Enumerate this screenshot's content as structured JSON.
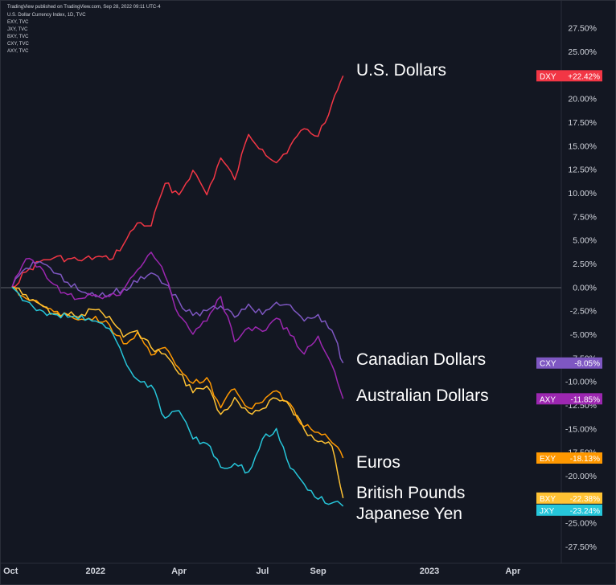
{
  "header": {
    "published": "TradingView published on TradingView.com, Sep 28, 2022 09:11 UTC-4",
    "symbols": [
      "U.S. Dollar Currency Index, 1D, TVC",
      "EXY, TVC",
      "JXY, TVC",
      "BXY, TVC",
      "CXY, TVC",
      "AXY, TVC"
    ]
  },
  "chart_data": {
    "type": "line",
    "ylim": [
      -29.3,
      28.5
    ],
    "y_ticks": [
      "27.50%",
      "25.00%",
      "22.50%",
      "20.00%",
      "17.50%",
      "15.00%",
      "12.50%",
      "10.00%",
      "7.50%",
      "5.00%",
      "2.50%",
      "0.00%",
      "-2.50%",
      "-5.00%",
      "-7.50%",
      "-10.00%",
      "-12.50%",
      "-15.00%",
      "-17.50%",
      "-20.00%",
      "-22.50%",
      "-25.00%",
      "-27.50%"
    ],
    "x_ticks": [
      "Oct",
      "2022",
      "Apr",
      "Jul",
      "Sep",
      "2023",
      "Apr"
    ],
    "x_unit": "months since Oct 2021",
    "annotations": [
      "U.S. Dollars",
      "Canadian Dollars",
      "Australian Dollars",
      "Euros",
      "British Pounds",
      "Japanese Yen"
    ],
    "series": [
      {
        "name": "DXY",
        "label": "DXY",
        "value_label": "+22.42%",
        "color": "#f23645",
        "x": [
          0,
          0.5,
          1,
          1.5,
          2,
          2.5,
          3,
          3.5,
          4,
          4.5,
          5,
          5.5,
          6,
          6.5,
          7,
          7.5,
          8,
          8.5,
          9,
          9.5,
          10,
          10.5,
          11,
          11.5,
          11.9
        ],
        "y": [
          0,
          1.6,
          2.7,
          3.1,
          3.0,
          2.8,
          3.2,
          2.9,
          4.5,
          6.8,
          6.5,
          11.0,
          9.8,
          12.4,
          9.8,
          13.7,
          11.4,
          16.2,
          14.6,
          13.2,
          15.0,
          16.8,
          16.0,
          19.5,
          22.42
        ]
      },
      {
        "name": "CXY",
        "label": "CXY",
        "value_label": "-8.05%",
        "color": "#7e57c2",
        "x": [
          0,
          0.5,
          1,
          1.5,
          2,
          2.5,
          3,
          3.5,
          4,
          4.5,
          5,
          5.5,
          6,
          6.5,
          7,
          7.5,
          8,
          8.5,
          9,
          9.5,
          10,
          10.5,
          11,
          11.5,
          11.9
        ],
        "y": [
          0,
          2.0,
          2.7,
          1.5,
          0.5,
          -0.5,
          -1.0,
          -0.8,
          -0.2,
          0.5,
          1.5,
          0.3,
          -1.5,
          -3.0,
          -2.5,
          -2.0,
          -3.2,
          -1.8,
          -2.9,
          -1.6,
          -1.9,
          -3.6,
          -2.9,
          -4.6,
          -8.05
        ]
      },
      {
        "name": "AXY",
        "label": "AXY",
        "value_label": "-11.85%",
        "color": "#9c27b0",
        "x": [
          0,
          0.5,
          1,
          1.5,
          2,
          2.5,
          3,
          3.5,
          4,
          4.5,
          5,
          5.5,
          6,
          6.5,
          7,
          7.5,
          8,
          8.5,
          9,
          9.5,
          10,
          10.5,
          11,
          11.5,
          11.9
        ],
        "y": [
          0,
          3.0,
          2.2,
          0.3,
          -0.8,
          -1.2,
          -0.8,
          -1.0,
          -0.3,
          1.8,
          3.7,
          1.2,
          -3.0,
          -5.0,
          -3.6,
          -1.0,
          -5.8,
          -4.3,
          -4.7,
          -3.3,
          -5.1,
          -7.1,
          -5.2,
          -8.3,
          -11.85
        ]
      },
      {
        "name": "EXY",
        "label": "EXY",
        "value_label": "-18.13%",
        "color": "#ff9800",
        "x": [
          0,
          0.5,
          1,
          1.5,
          2,
          2.5,
          3,
          3.5,
          4,
          4.5,
          5,
          5.5,
          6,
          6.5,
          7,
          7.5,
          8,
          8.5,
          9,
          9.5,
          10,
          10.5,
          11,
          11.5,
          11.9
        ],
        "y": [
          0,
          -1.2,
          -1.8,
          -2.6,
          -2.9,
          -3.4,
          -3.1,
          -4.0,
          -6.0,
          -4.8,
          -7.2,
          -6.4,
          -8.6,
          -10.2,
          -9.6,
          -12.8,
          -10.8,
          -12.8,
          -12.2,
          -11.0,
          -12.4,
          -14.8,
          -15.4,
          -16.5,
          -18.13
        ]
      },
      {
        "name": "BXY",
        "label": "BXY",
        "value_label": "-22.38%",
        "color": "#ffc233",
        "x": [
          0,
          0.5,
          1,
          1.5,
          2,
          2.5,
          3,
          3.5,
          4,
          4.5,
          5,
          5.5,
          6,
          6.5,
          7,
          7.5,
          8,
          8.5,
          9,
          9.5,
          10,
          10.5,
          11,
          11.5,
          11.9
        ],
        "y": [
          0,
          -0.8,
          -1.8,
          -2.8,
          -3.0,
          -2.9,
          -2.4,
          -3.1,
          -5.3,
          -4.6,
          -6.4,
          -7.1,
          -9.2,
          -11.2,
          -10.5,
          -13.5,
          -11.7,
          -13.3,
          -12.9,
          -11.8,
          -12.7,
          -15.1,
          -16.4,
          -16.9,
          -22.38
        ]
      },
      {
        "name": "JXY",
        "label": "JXY",
        "value_label": "-23.24%",
        "color": "#26c6da",
        "x": [
          0,
          0.5,
          1,
          1.5,
          2,
          2.5,
          3,
          3.5,
          4,
          4.5,
          5,
          5.5,
          6,
          6.5,
          7,
          7.5,
          8,
          8.5,
          9,
          9.5,
          10,
          10.5,
          11,
          11.5,
          11.9
        ],
        "y": [
          0,
          -1.5,
          -2.4,
          -2.9,
          -3.2,
          -3.0,
          -3.6,
          -4.4,
          -7.4,
          -9.8,
          -10.4,
          -13.9,
          -13.1,
          -16.1,
          -16.6,
          -19.1,
          -18.7,
          -19.6,
          -16.1,
          -15.0,
          -19.2,
          -20.9,
          -22.5,
          -22.9,
          -23.24
        ]
      }
    ]
  }
}
